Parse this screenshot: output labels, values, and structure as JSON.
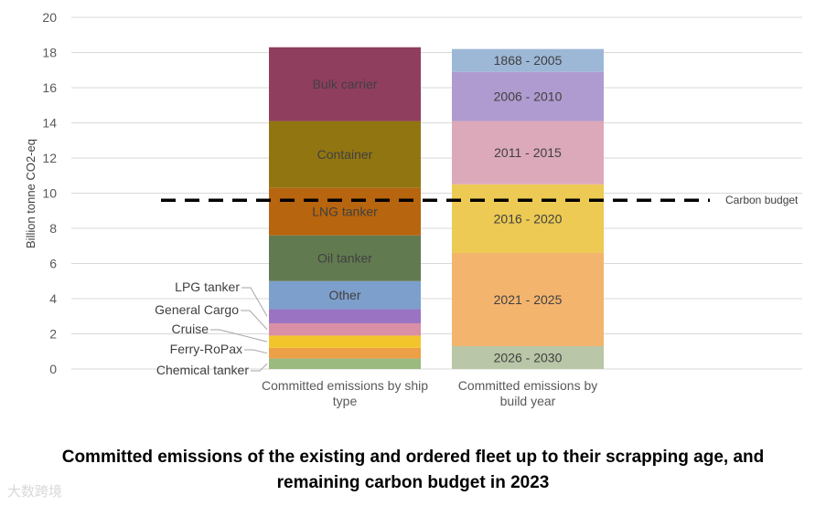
{
  "chart_data": {
    "type": "bar",
    "stacked": true,
    "ylabel": "Billion tonne CO2-eq",
    "ylim": [
      0,
      20
    ],
    "yticks": [
      0,
      2,
      4,
      6,
      8,
      10,
      12,
      14,
      16,
      18,
      20
    ],
    "grid": true,
    "bars": [
      {
        "category": [
          "Committed emissions by ship",
          "type"
        ],
        "segments": [
          {
            "name": "Chemical tanker",
            "value": 0.6,
            "color": "#9bba7f",
            "callout": true
          },
          {
            "name": "Ferry-RoPax",
            "value": 0.6,
            "color": "#eda046",
            "callout": true
          },
          {
            "name": "Cruise",
            "value": 0.7,
            "color": "#f2c52d",
            "callout": true
          },
          {
            "name": "General Cargo",
            "value": 0.7,
            "color": "#d98fa6",
            "callout": true
          },
          {
            "name": "LPG tanker",
            "value": 0.8,
            "color": "#9a73c3",
            "callout": true
          },
          {
            "name": "Other",
            "value": 1.6,
            "color": "#7d9fcc",
            "callout": false
          },
          {
            "name": "Oil tanker",
            "value": 2.6,
            "color": "#627a50",
            "callout": false
          },
          {
            "name": "LNG tanker",
            "value": 2.7,
            "color": "#b7650e",
            "callout": false
          },
          {
            "name": "Container",
            "value": 3.8,
            "color": "#917511",
            "callout": false
          },
          {
            "name": "Bulk carrier",
            "value": 4.2,
            "color": "#8f3e5e",
            "callout": false
          }
        ]
      },
      {
        "category": [
          "Committed emissions by",
          "build year"
        ],
        "segments": [
          {
            "name": "2026 - 2030",
            "value": 1.3,
            "color": "#b9c6a7",
            "callout": false
          },
          {
            "name": "2021 - 2025",
            "value": 5.3,
            "color": "#f3b46e",
            "callout": false
          },
          {
            "name": "2016 - 2020",
            "value": 3.9,
            "color": "#ecca53",
            "callout": false
          },
          {
            "name": "2011 - 2015",
            "value": 3.6,
            "color": "#dca9ba",
            "callout": false
          },
          {
            "name": "2006 - 2010",
            "value": 2.8,
            "color": "#b09bd0",
            "callout": false
          },
          {
            "name": "1868 - 2005",
            "value": 1.3,
            "color": "#9db7d6",
            "callout": false
          }
        ]
      }
    ],
    "reference_line": {
      "label": "Carbon budget",
      "value": 9.6,
      "style": "dashed",
      "color": "#000000"
    },
    "title": [
      "Committed emissions of the existing and ordered fleet up to their scrapping age, and",
      "remaining carbon budget in 2023"
    ]
  },
  "watermark": "大数跨境"
}
